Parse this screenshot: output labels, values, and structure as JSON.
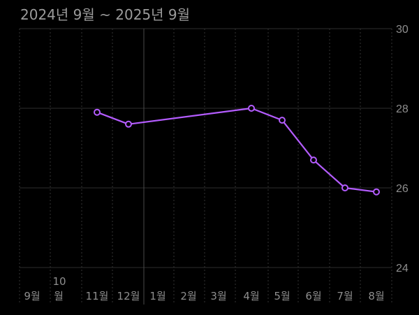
{
  "header": {
    "title": "2024년 9월 ~ 2025년 9월"
  },
  "chart_data": {
    "type": "line",
    "title": "2024년 9월 ~ 2025년 9월",
    "categories": [
      "9월",
      "10월",
      "11월",
      "12월",
      "1월",
      "2월",
      "3월",
      "4월",
      "5월",
      "6월",
      "7월",
      "8월"
    ],
    "series": [
      {
        "values": [
          null,
          null,
          27.9,
          27.6,
          null,
          null,
          null,
          28.0,
          27.7,
          26.7,
          26.0,
          25.9
        ]
      }
    ],
    "yticks": [
      24,
      26,
      28,
      30
    ],
    "ylim": [
      24,
      30
    ],
    "grid": true,
    "colors": {
      "line": "#b45cff",
      "background": "#000000",
      "grid": "#2e2e2e",
      "text": "#8e8e8e"
    }
  }
}
